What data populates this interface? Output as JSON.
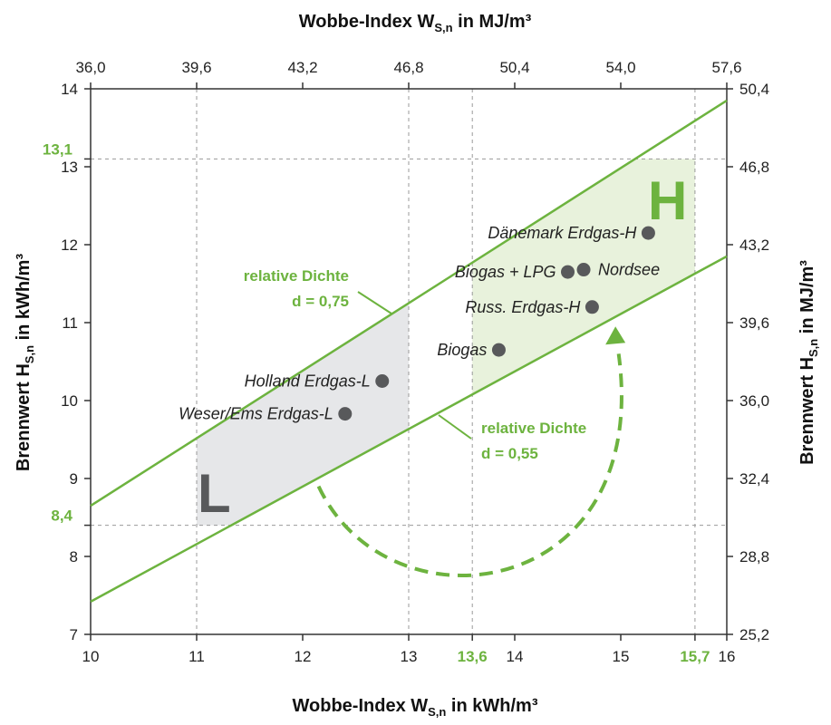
{
  "chart_data": {
    "type": "scatter",
    "title_top": "Wobbe-Index W",
    "title_top_sub": "S,n",
    "title_top_unit": " in MJ/m³",
    "title_bottom": "Wobbe-Index W",
    "title_bottom_sub": "S,n",
    "title_bottom_unit": " in kWh/m³",
    "ylabel_left": "Brennwert H",
    "ylabel_left_sub": "S,n",
    "ylabel_left_unit": " in kWh/m³",
    "ylabel_right": "Brennwert H",
    "ylabel_right_sub": "S,n",
    "ylabel_right_unit": " in MJ/m³",
    "xlim": [
      10,
      16
    ],
    "ylim": [
      7,
      14
    ],
    "x_ticks": [
      "10",
      "11",
      "12",
      "13",
      "14",
      "15",
      "16"
    ],
    "x_ticks_values": [
      10,
      11,
      12,
      13,
      14,
      15,
      16
    ],
    "x_top_ticks": [
      "36,0",
      "39,6",
      "43,2",
      "46,8",
      "50,4",
      "54,0",
      "57,6"
    ],
    "y_ticks": [
      "7",
      "8",
      "9",
      "10",
      "11",
      "12",
      "13",
      "14"
    ],
    "y_ticks_values": [
      7,
      8,
      9,
      10,
      11,
      12,
      13,
      14
    ],
    "y_right_ticks": [
      "25,2",
      "28,8",
      "32,4",
      "36,0",
      "39,6",
      "43,2",
      "46,8",
      "50,4"
    ],
    "highlight_x": [
      {
        "label": "13,6",
        "value": 13.6
      },
      {
        "label": "15,7",
        "value": 15.7
      }
    ],
    "highlight_y": [
      {
        "label": "13,1",
        "value": 13.1
      },
      {
        "label": "8,4",
        "value": 8.4
      }
    ],
    "grid_x": [
      11,
      13,
      13.6,
      15.7
    ],
    "grid_y": [
      13.1,
      8.4
    ],
    "density_lines": [
      {
        "label": "relative Dichte",
        "sublabel": "d = 0,75",
        "x": [
          10,
          16
        ],
        "y": [
          8.65,
          13.85
        ]
      },
      {
        "label": "relative Dichte",
        "sublabel": "d = 0,55",
        "x": [
          10,
          16
        ],
        "y": [
          7.42,
          11.85
        ]
      }
    ],
    "zones": [
      {
        "name": "L",
        "color": "#e6e7e9",
        "letter_color": "#58595b"
      },
      {
        "name": "H",
        "color": "#e8f2dc",
        "letter_color": "#6db33f"
      }
    ],
    "points": [
      {
        "label": "Dänemark Erdgas-H",
        "x": 15.26,
        "y": 12.15
      },
      {
        "label": "Biogas + LPG",
        "x": 14.5,
        "y": 11.65
      },
      {
        "label": "Nordsee",
        "x": 14.65,
        "y": 11.68
      },
      {
        "label": "Russ. Erdgas-H",
        "x": 14.73,
        "y": 11.2
      },
      {
        "label": "Biogas",
        "x": 13.85,
        "y": 10.65
      },
      {
        "label": "Holland Erdgas-L",
        "x": 12.75,
        "y": 10.25
      },
      {
        "label": "Weser/Ems Erdgas-L",
        "x": 12.4,
        "y": 9.83
      }
    ],
    "colors": {
      "green": "#6db33f",
      "point": "#58595b",
      "grid": "#999999",
      "axis": "#333333"
    }
  }
}
